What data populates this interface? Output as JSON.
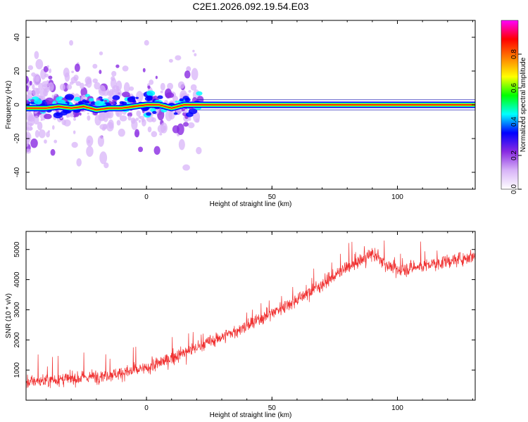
{
  "title": "C2E1.2026.092.19.54.E03",
  "chart_data": [
    {
      "type": "heatmap",
      "xlabel": "Height of straight line (km)",
      "ylabel": "Frequency (Hz)",
      "xlim": [
        -48,
        131
      ],
      "ylim": [
        -50,
        50
      ],
      "xticks": [
        0,
        50,
        100
      ],
      "yticks": [
        -40,
        -20,
        0,
        20,
        40
      ],
      "ridge": {
        "x": [
          -48,
          -40,
          -35,
          -30,
          -25,
          -20,
          -15,
          -10,
          -5,
          0,
          5,
          10,
          15,
          20,
          30,
          50,
          100,
          131
        ],
        "frequency": [
          -2,
          -2,
          -1,
          -2,
          -1,
          -3,
          -2,
          -2,
          -1,
          0,
          0,
          -2,
          0,
          0,
          0,
          0,
          0,
          0
        ]
      },
      "colorbar": {
        "label": "Normalized spectral amplitude",
        "range": [
          0,
          1
        ],
        "ticks": [
          "0.0",
          "0.2",
          "0.4",
          "0.6",
          "0.8"
        ],
        "colors": [
          "#ffffff",
          "#d8b4f8",
          "#8a2be2",
          "#0000ff",
          "#00ffff",
          "#00ff00",
          "#ffff00",
          "#ff8000",
          "#ff0000",
          "#ff00ff"
        ]
      }
    },
    {
      "type": "line",
      "xlabel": "Height of straight line (km)",
      "ylabel": "SNR (10 * v/v)",
      "xlim": [
        -48,
        131
      ],
      "ylim": [
        0,
        5600
      ],
      "xticks": [
        0,
        50,
        100
      ],
      "yticks": [
        1000,
        2000,
        3000,
        4000,
        5000
      ],
      "color": "#f03030",
      "trend": {
        "x": [
          -48,
          -40,
          -30,
          -20,
          -10,
          0,
          10,
          20,
          30,
          40,
          50,
          60,
          70,
          80,
          90,
          95,
          100,
          110,
          120,
          131
        ],
        "y": [
          600,
          650,
          700,
          800,
          900,
          1050,
          1400,
          1750,
          2100,
          2450,
          2900,
          3350,
          3850,
          4400,
          4850,
          4550,
          4300,
          4450,
          4600,
          4800
        ]
      }
    }
  ]
}
